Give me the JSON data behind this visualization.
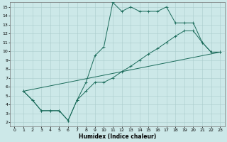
{
  "xlabel": "Humidex (Indice chaleur)",
  "xlim": [
    -0.5,
    23.5
  ],
  "ylim": [
    1.5,
    15.5
  ],
  "xticks": [
    0,
    1,
    2,
    3,
    4,
    5,
    6,
    7,
    8,
    9,
    10,
    11,
    12,
    13,
    14,
    15,
    16,
    17,
    18,
    19,
    20,
    21,
    22,
    23
  ],
  "yticks": [
    2,
    3,
    4,
    5,
    6,
    7,
    8,
    9,
    10,
    11,
    12,
    13,
    14,
    15
  ],
  "bg_color": "#cce8e8",
  "grid_color": "#aacccc",
  "line_color": "#1a6b5a",
  "line1_x": [
    1,
    2,
    3,
    4,
    5,
    6,
    7,
    8,
    9,
    10,
    11,
    12,
    13,
    14,
    15,
    16,
    17,
    18,
    19,
    20,
    21,
    22,
    23
  ],
  "line1_y": [
    5.5,
    4.5,
    3.3,
    3.3,
    3.3,
    2.2,
    4.5,
    6.5,
    9.5,
    10.5,
    15.5,
    14.5,
    15.0,
    14.5,
    14.5,
    14.5,
    15.0,
    13.2,
    13.2,
    13.2,
    11.0,
    9.9,
    9.9
  ],
  "line2_x": [
    1,
    2,
    3,
    4,
    5,
    6,
    7,
    8,
    9,
    10,
    11,
    12,
    13,
    14,
    15,
    16,
    17,
    18,
    19,
    20,
    21,
    22,
    23
  ],
  "line2_y": [
    5.5,
    4.5,
    3.3,
    3.3,
    3.3,
    2.2,
    4.5,
    5.5,
    6.5,
    6.5,
    7.0,
    7.7,
    8.3,
    9.0,
    9.7,
    10.3,
    11.0,
    11.7,
    12.3,
    12.3,
    11.0,
    9.9,
    9.9
  ],
  "line3_x": [
    1,
    23
  ],
  "line3_y": [
    5.5,
    9.9
  ]
}
